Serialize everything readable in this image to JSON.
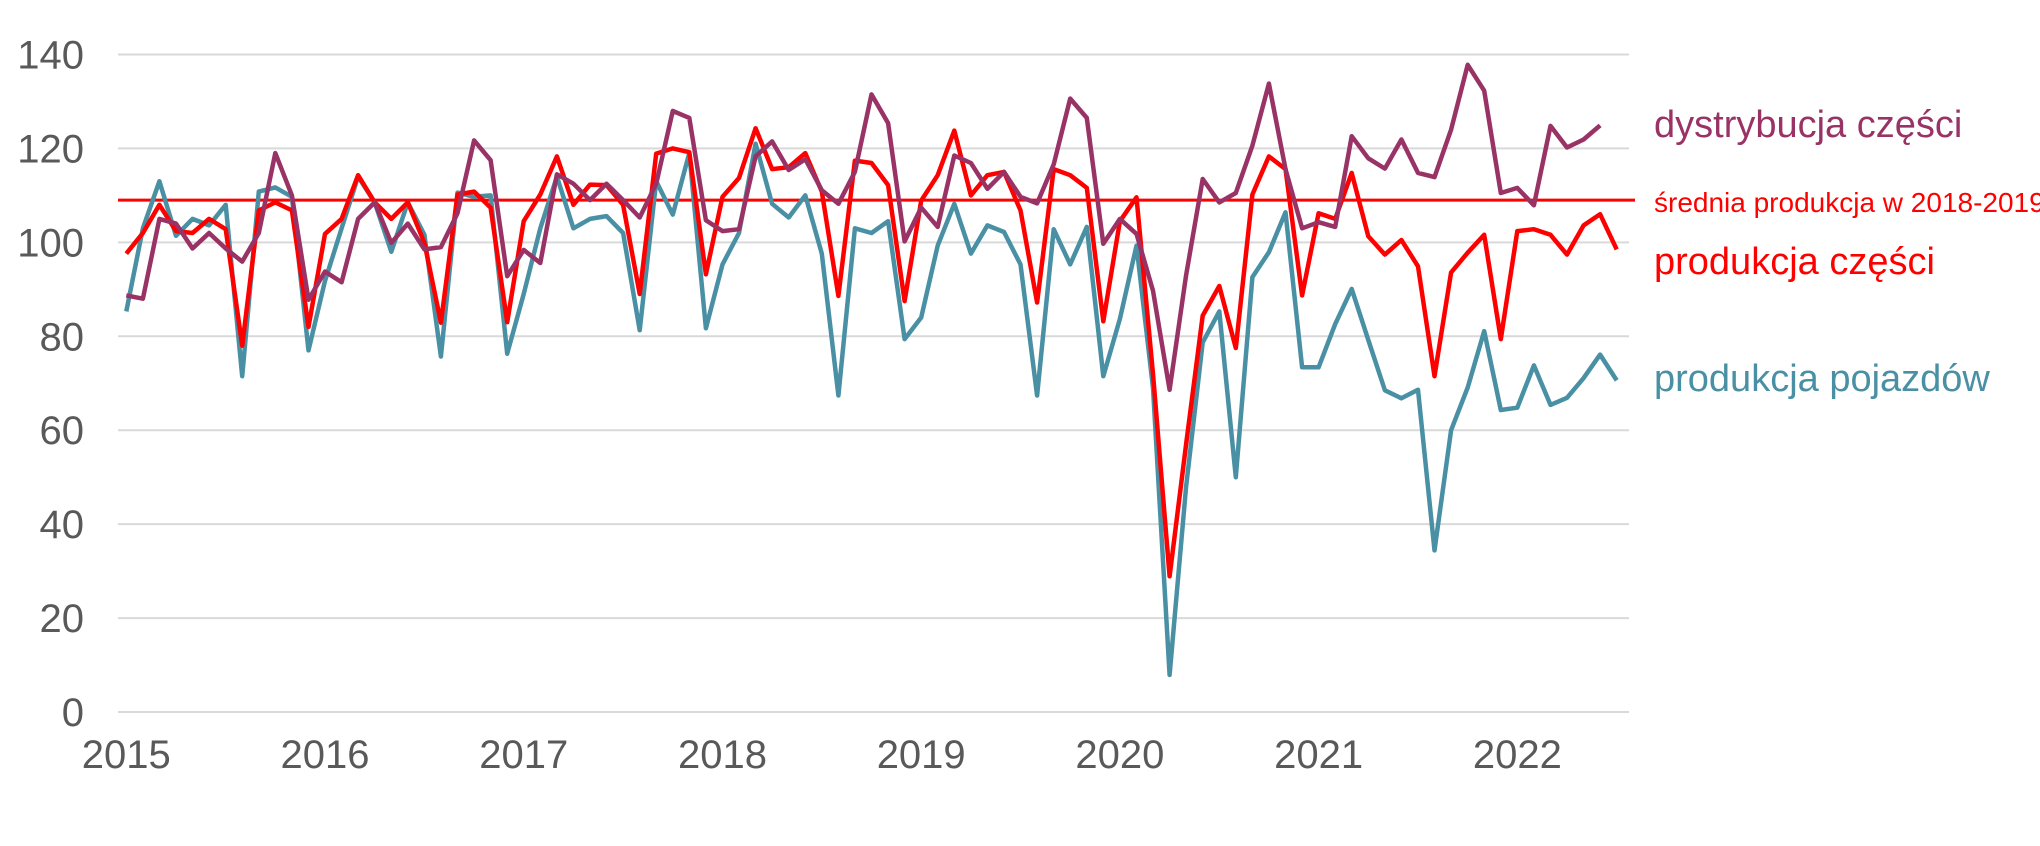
{
  "chart_data": {
    "type": "line",
    "title": "",
    "xlabel": "",
    "ylabel": "",
    "ylim": [
      0,
      140
    ],
    "yticks": [
      "0",
      "20",
      "40",
      "60",
      "80",
      "100",
      "120",
      "140"
    ],
    "xticks": [
      "2015",
      "2016",
      "2017",
      "2018",
      "2019",
      "2020",
      "2021",
      "2022"
    ],
    "x_start": "2015-01",
    "x_frequency": "monthly",
    "grid": true,
    "legend": "right, inline labels",
    "reference_line": {
      "label": "średnia produkcja w 2018-2019",
      "value": 109,
      "color": "#ff0000"
    },
    "series": [
      {
        "name": "produkcja pojazdów",
        "color": "#4a90a4",
        "values": [
          85.3,
          103,
          113,
          101.4,
          105,
          103.6,
          108,
          71.5,
          110.8,
          111.7,
          109.7,
          77,
          91.8,
          103,
          114,
          108.5,
          98,
          108.5,
          101.6,
          75.7,
          110.6,
          109.7,
          110,
          76.3,
          89,
          103,
          114,
          103,
          105,
          105.6,
          102,
          81.3,
          113,
          105.9,
          119,
          81.7,
          95.3,
          102,
          121,
          108.2,
          105.3,
          110,
          97.6,
          67.4,
          103,
          102,
          104.5,
          79.4,
          84,
          99.3,
          108.2,
          97.6,
          103.6,
          102.2,
          95.3,
          67.4,
          102.8,
          95.3,
          103.3,
          71.5,
          83.7,
          99.3,
          69,
          7.9,
          48,
          78.7,
          85.3,
          50,
          92.6,
          97.9,
          106.4,
          73.4,
          73.4,
          82.6,
          90.1,
          79.2,
          68.5,
          66.8,
          68.6,
          34.4,
          60,
          69.1,
          81.1,
          64.3,
          64.8,
          73.8,
          65.4,
          66.9,
          71.1,
          76.1,
          70.6
        ]
      },
      {
        "name": "produkcja części",
        "color": "#ff0000",
        "values": [
          97.6,
          102,
          108,
          102.4,
          102,
          105,
          102.8,
          78,
          106.8,
          108.5,
          106.8,
          82,
          101.8,
          105,
          114.3,
          108.5,
          105,
          108.5,
          99.9,
          82.9,
          110.2,
          110.8,
          107.4,
          83,
          104.5,
          110.2,
          118.3,
          108,
          112.3,
          112.2,
          108,
          89,
          118.9,
          120,
          119.2,
          93.2,
          109.7,
          113.7,
          124.3,
          115.6,
          116,
          119,
          110.8,
          88.6,
          117.4,
          116.9,
          112.2,
          87.5,
          108.9,
          114.3,
          123.8,
          110,
          114.3,
          115,
          106.8,
          87.2,
          115.6,
          114.3,
          111.6,
          83.2,
          104.5,
          109.6,
          72,
          28.9,
          57,
          84.4,
          90.7,
          77.5,
          110.2,
          118.3,
          115.6,
          88.7,
          106.2,
          105,
          114.8,
          101.3,
          97.4,
          100.5,
          94.9,
          71.5,
          93.6,
          97.8,
          101.6,
          79.4,
          102.4,
          102.8,
          101.6,
          97.4,
          103.6,
          106,
          98.5
        ]
      },
      {
        "name": "dystrybucja części",
        "color": "#993366",
        "values": [
          88.7,
          88,
          105,
          104,
          98.7,
          102,
          98.7,
          95.9,
          102,
          119,
          110,
          87.8,
          93.8,
          91.5,
          105,
          108.5,
          99.9,
          104,
          98.5,
          99,
          106.2,
          121.7,
          117.5,
          92.8,
          98.4,
          95.6,
          114.5,
          112.5,
          109,
          112.5,
          109,
          105.3,
          112.5,
          128,
          126.5,
          104.7,
          102.4,
          102.8,
          118.3,
          121.5,
          115.4,
          117.7,
          111.1,
          108.2,
          115,
          131.5,
          125.4,
          100.2,
          107.4,
          103.3,
          118.5,
          116.9,
          111.4,
          115,
          109.7,
          108.3,
          116.6,
          130.6,
          126.5,
          99.7,
          105,
          101.8,
          89.7,
          68.6,
          93,
          113.5,
          108.5,
          110.5,
          120.6,
          133.8,
          115.6,
          103,
          104.3,
          103.3,
          122.6,
          117.9,
          115.7,
          121.9,
          114.8,
          113.9,
          124,
          137.8,
          132.3,
          110.5,
          111.6,
          107.9,
          124.8,
          120.2,
          121.9,
          124.9
        ]
      }
    ]
  }
}
